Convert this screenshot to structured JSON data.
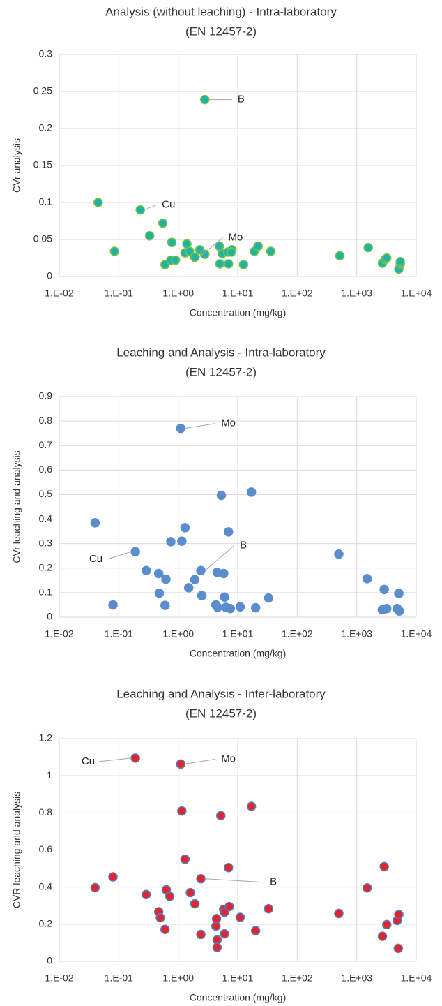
{
  "chart_data": [
    {
      "type": "scatter",
      "title": "Analysis (without leaching) - Intra-laboratory",
      "subtitle": "(EN 12457-2)",
      "x_label": "Concentration (mg/kg)",
      "y_label": "CVr analysis",
      "xscale": "log",
      "grid": true,
      "color": "#1fb3a6",
      "edge_color": "#7cc242",
      "xlim": [
        0.01,
        10000
      ],
      "xticks": [
        {
          "value": 0.01,
          "label": "1.E-02"
        },
        {
          "value": 0.1,
          "label": "1.E-01"
        },
        {
          "value": 1,
          "label": "1.E+00"
        },
        {
          "value": 10,
          "label": "1.E+01"
        },
        {
          "value": 100,
          "label": "1.E+02"
        },
        {
          "value": 1000,
          "label": "1.E+03"
        },
        {
          "value": 10000,
          "label": "1.E+04"
        }
      ],
      "ylim": [
        0,
        0.3
      ],
      "yticks": [
        0,
        0.05,
        0.1,
        0.15,
        0.2,
        0.25,
        0.3
      ],
      "x": [
        0.045,
        0.085,
        0.23,
        0.33,
        0.55,
        0.6,
        0.78,
        0.75,
        0.9,
        1.4,
        1.3,
        1.55,
        1.9,
        2.3,
        2.8,
        2.8,
        4.9,
        5,
        5.5,
        6.8,
        7,
        8,
        7.8,
        12.5,
        19,
        22,
        36,
        520,
        1560,
        2700,
        3000,
        3200,
        5100,
        5400,
        5400
      ],
      "values": [
        0.1,
        0.034,
        0.09,
        0.055,
        0.072,
        0.016,
        0.046,
        0.022,
        0.022,
        0.044,
        0.032,
        0.034,
        0.026,
        0.036,
        0.239,
        0.03,
        0.041,
        0.017,
        0.031,
        0.033,
        0.017,
        0.036,
        0.033,
        0.016,
        0.034,
        0.041,
        0.034,
        0.028,
        0.039,
        0.018,
        0.023,
        0.025,
        0.01,
        0.017,
        0.02
      ],
      "annotations": [
        "B",
        "Cu",
        "Mo"
      ]
    },
    {
      "type": "scatter",
      "title": "Leaching and Analysis - Intra-laboratory",
      "subtitle": "(EN 12457-2)",
      "x_label": "Concentration (mg/kg)",
      "y_label": "CVr leaching and analysis",
      "xscale": "log",
      "grid": true,
      "color": "#5b8ccc",
      "edge_color": "#5b8ccc",
      "xlim": [
        0.01,
        10000
      ],
      "xticks": [
        {
          "value": 0.01,
          "label": "1.E-02"
        },
        {
          "value": 0.1,
          "label": "1.E-01"
        },
        {
          "value": 1,
          "label": "1.E+00"
        },
        {
          "value": 10,
          "label": "1.E+01"
        },
        {
          "value": 100,
          "label": "1.E+02"
        },
        {
          "value": 1000,
          "label": "1.E+03"
        },
        {
          "value": 10000,
          "label": "1.E+04"
        }
      ],
      "ylim": [
        0,
        0.9
      ],
      "yticks": [
        0,
        0.1,
        0.2,
        0.3,
        0.4,
        0.5,
        0.6,
        0.7,
        0.8,
        0.9
      ],
      "x": [
        0.04,
        0.08,
        0.19,
        0.29,
        0.47,
        0.48,
        0.6,
        0.62,
        0.75,
        1.1,
        1.15,
        1.3,
        1.5,
        1.9,
        2.4,
        2.5,
        4.3,
        4.5,
        4.6,
        5.3,
        5.8,
        6,
        6.3,
        7,
        7.5,
        11,
        17,
        20,
        33,
        500,
        1500,
        2700,
        2900,
        3200,
        4800,
        5100,
        5200
      ],
      "values": [
        0.385,
        0.05,
        0.267,
        0.19,
        0.178,
        0.098,
        0.048,
        0.155,
        0.308,
        0.77,
        0.31,
        0.365,
        0.12,
        0.153,
        0.19,
        0.088,
        0.05,
        0.183,
        0.04,
        0.497,
        0.178,
        0.082,
        0.04,
        0.348,
        0.035,
        0.042,
        0.51,
        0.038,
        0.078,
        0.257,
        0.157,
        0.03,
        0.113,
        0.035,
        0.035,
        0.097,
        0.025
      ],
      "annotations": [
        "Mo",
        "Cu",
        "B"
      ]
    },
    {
      "type": "scatter",
      "title": "Leaching and Analysis - Inter-laboratory",
      "subtitle": "(EN 12457-2)",
      "x_label": "Concentration (mg/kg)",
      "y_label": "CVR leaching and analysis",
      "xscale": "log",
      "grid": true,
      "color": "#e3262b",
      "edge_color": "#4f7fc8",
      "xlim": [
        0.01,
        10000
      ],
      "xticks": [
        {
          "value": 0.01,
          "label": "1.E-02"
        },
        {
          "value": 0.1,
          "label": "1.E-01"
        },
        {
          "value": 1,
          "label": "1.E+00"
        },
        {
          "value": 10,
          "label": "1.E+01"
        },
        {
          "value": 100,
          "label": "1.E+02"
        },
        {
          "value": 1000,
          "label": "1.E+03"
        },
        {
          "value": 10000,
          "label": "1.E+04"
        }
      ],
      "ylim": [
        0,
        1.2
      ],
      "yticks": [
        0,
        0.2,
        0.4,
        0.6,
        0.8,
        1,
        1.2
      ],
      "x": [
        0.04,
        0.08,
        0.19,
        0.29,
        0.47,
        0.5,
        0.6,
        0.63,
        0.72,
        1.1,
        1.15,
        1.3,
        1.6,
        1.9,
        2.4,
        2.4,
        4.3,
        4.4,
        4.5,
        4.5,
        5.2,
        5.8,
        6,
        6,
        7,
        7.2,
        11,
        17,
        20,
        33,
        500,
        1500,
        2700,
        2900,
        3200,
        4800,
        5100,
        5000
      ],
      "values": [
        0.397,
        0.455,
        1.095,
        0.36,
        0.267,
        0.235,
        0.172,
        0.386,
        0.35,
        1.063,
        0.81,
        0.55,
        0.37,
        0.31,
        0.145,
        0.445,
        0.19,
        0.23,
        0.115,
        0.075,
        0.785,
        0.28,
        0.265,
        0.148,
        0.505,
        0.295,
        0.237,
        0.835,
        0.165,
        0.283,
        0.258,
        0.396,
        0.135,
        0.51,
        0.198,
        0.22,
        0.252,
        0.07
      ],
      "annotations": [
        "Cu",
        "Mo",
        "B"
      ]
    }
  ]
}
